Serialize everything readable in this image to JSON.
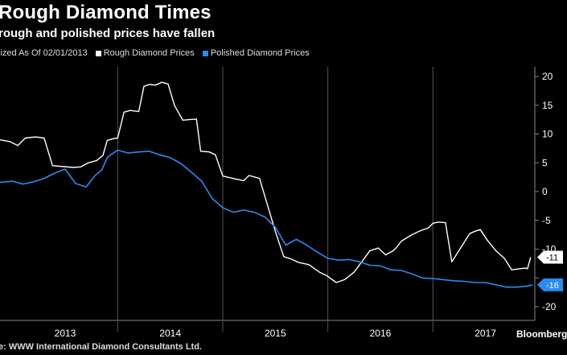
{
  "title": "Rough Diamond Times",
  "subtitle": "rough and polished prices have fallen",
  "legend": {
    "normalized_label": "lized As Of 02/01/2013",
    "rough_label": "Rough Diamond Prices",
    "polished_label": "Polished Diamond Prices"
  },
  "footer": "e: WWW International Diamond Consultants Ltd.",
  "brand": "Bloomberg",
  "colors": {
    "rough": "#ffffff",
    "polished": "#2a8cf0",
    "grid": "#555555",
    "background": "#000000"
  },
  "chart_data": {
    "type": "line",
    "xlim": [
      2012.88,
      2017.97
    ],
    "ylim": [
      -21,
      21
    ],
    "yticks": [
      20,
      15,
      10,
      5,
      0,
      -5,
      -10,
      -15,
      -20
    ],
    "ytick_labels": [
      "20",
      "15",
      "10",
      "5",
      "0",
      "-5",
      "-10",
      "",
      "-20"
    ],
    "xtick_labels": [
      "2013",
      "2014",
      "2015",
      "2016",
      "2017"
    ],
    "xtick_positions": [
      2013.5,
      2014.5,
      2015.5,
      2016.5,
      2017.5
    ],
    "year_boundaries": [
      2014.0,
      2015.0,
      2016.0,
      2017.0
    ],
    "series": [
      {
        "name": "Rough Diamond Prices",
        "last_label": "-11",
        "points": [
          [
            2012.88,
            9
          ],
          [
            2012.97,
            8.7
          ],
          [
            2013.05,
            8
          ],
          [
            2013.12,
            9.3
          ],
          [
            2013.22,
            9.5
          ],
          [
            2013.3,
            9.3
          ],
          [
            2013.38,
            4.5
          ],
          [
            2013.58,
            4.2
          ],
          [
            2013.65,
            4.3
          ],
          [
            2013.72,
            5
          ],
          [
            2013.8,
            5.4
          ],
          [
            2013.86,
            6.3
          ],
          [
            2013.9,
            8.9
          ],
          [
            2013.96,
            9.2
          ],
          [
            2014.0,
            9.3
          ],
          [
            2014.06,
            13.8
          ],
          [
            2014.12,
            14.1
          ],
          [
            2014.2,
            13.9
          ],
          [
            2014.25,
            18.3
          ],
          [
            2014.3,
            18.6
          ],
          [
            2014.36,
            18.5
          ],
          [
            2014.42,
            19
          ],
          [
            2014.48,
            18.7
          ],
          [
            2014.54,
            15
          ],
          [
            2014.62,
            12.4
          ],
          [
            2014.68,
            12.5
          ],
          [
            2014.75,
            12.6
          ],
          [
            2014.79,
            7
          ],
          [
            2014.87,
            6.9
          ],
          [
            2014.93,
            6.4
          ],
          [
            2015.0,
            2.7
          ],
          [
            2015.12,
            2.2
          ],
          [
            2015.2,
            1.9
          ],
          [
            2015.25,
            2.8
          ],
          [
            2015.35,
            2.3
          ],
          [
            2015.5,
            -6.9
          ],
          [
            2015.58,
            -11.3
          ],
          [
            2015.65,
            -11.7
          ],
          [
            2015.72,
            -12.3
          ],
          [
            2015.82,
            -12.7
          ],
          [
            2015.92,
            -14
          ],
          [
            2015.99,
            -14.6
          ],
          [
            2016.08,
            -15.8
          ],
          [
            2016.16,
            -15.3
          ],
          [
            2016.25,
            -14
          ],
          [
            2016.4,
            -10.3
          ],
          [
            2016.48,
            -9.8
          ],
          [
            2016.55,
            -11
          ],
          [
            2016.62,
            -10.3
          ],
          [
            2016.65,
            -9.8
          ],
          [
            2016.7,
            -8.6
          ],
          [
            2016.8,
            -7.5
          ],
          [
            2016.88,
            -6.8
          ],
          [
            2016.96,
            -6.3
          ],
          [
            2017.0,
            -5.5
          ],
          [
            2017.05,
            -5.3
          ],
          [
            2017.12,
            -5.4
          ],
          [
            2017.18,
            -12.2
          ],
          [
            2017.25,
            -10.2
          ],
          [
            2017.35,
            -7.3
          ],
          [
            2017.4,
            -6.9
          ],
          [
            2017.45,
            -6.6
          ],
          [
            2017.52,
            -8.5
          ],
          [
            2017.6,
            -10.3
          ],
          [
            2017.68,
            -11.6
          ],
          [
            2017.75,
            -13.6
          ],
          [
            2017.83,
            -13.4
          ],
          [
            2017.88,
            -13.3
          ],
          [
            2017.9,
            -13.4
          ],
          [
            2017.93,
            -11.4
          ]
        ]
      },
      {
        "name": "Polished Diamond Prices",
        "last_label": "-16",
        "points": [
          [
            2012.88,
            1.6
          ],
          [
            2013.0,
            1.8
          ],
          [
            2013.1,
            1.3
          ],
          [
            2013.2,
            1.7
          ],
          [
            2013.3,
            2.3
          ],
          [
            2013.4,
            3.2
          ],
          [
            2013.5,
            3.9
          ],
          [
            2013.6,
            1.4
          ],
          [
            2013.7,
            0.8
          ],
          [
            2013.78,
            2.7
          ],
          [
            2013.85,
            3.8
          ],
          [
            2013.9,
            5.9
          ],
          [
            2013.95,
            6.6
          ],
          [
            2014.0,
            7.2
          ],
          [
            2014.1,
            6.7
          ],
          [
            2014.2,
            6.9
          ],
          [
            2014.3,
            7
          ],
          [
            2014.4,
            6.4
          ],
          [
            2014.5,
            5.9
          ],
          [
            2014.6,
            4.9
          ],
          [
            2014.7,
            3.4
          ],
          [
            2014.8,
            1.8
          ],
          [
            2014.9,
            -1.2
          ],
          [
            2015.0,
            -2.8
          ],
          [
            2015.1,
            -3.6
          ],
          [
            2015.2,
            -3.2
          ],
          [
            2015.3,
            -3.6
          ],
          [
            2015.4,
            -4.4
          ],
          [
            2015.5,
            -6.2
          ],
          [
            2015.6,
            -9.3
          ],
          [
            2015.7,
            -8.3
          ],
          [
            2015.8,
            -9.3
          ],
          [
            2015.88,
            -10.3
          ],
          [
            2016.0,
            -11.6
          ],
          [
            2016.1,
            -11.9
          ],
          [
            2016.2,
            -11.8
          ],
          [
            2016.3,
            -12.2
          ],
          [
            2016.4,
            -12.8
          ],
          [
            2016.5,
            -12.9
          ],
          [
            2016.6,
            -13.6
          ],
          [
            2016.7,
            -13.7
          ],
          [
            2016.8,
            -14.3
          ],
          [
            2016.9,
            -15
          ],
          [
            2017.0,
            -15.1
          ],
          [
            2017.1,
            -15.3
          ],
          [
            2017.2,
            -15.5
          ],
          [
            2017.3,
            -15.6
          ],
          [
            2017.4,
            -15.8
          ],
          [
            2017.5,
            -15.8
          ],
          [
            2017.6,
            -16.2
          ],
          [
            2017.7,
            -16.6
          ],
          [
            2017.8,
            -16.6
          ],
          [
            2017.9,
            -16.4
          ],
          [
            2017.95,
            -16.2
          ]
        ]
      }
    ]
  }
}
